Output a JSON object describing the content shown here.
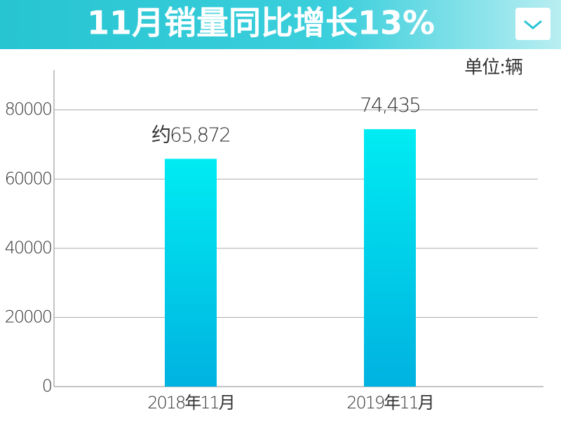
{
  "chart_data": {
    "type": "bar",
    "title": "11月销量同比增长13%",
    "unit_label": "单位:辆",
    "categories": [
      "2018年11月",
      "2019年11月"
    ],
    "values": [
      65872,
      74435
    ],
    "value_labels": [
      "约65,872",
      "74,435"
    ],
    "color_top": "#00ecf2",
    "color_bottom": "#00b2e0",
    "ylim": [
      0,
      91500
    ],
    "yticks": [
      0,
      20000,
      40000,
      60000,
      80000
    ],
    "grid": true
  }
}
